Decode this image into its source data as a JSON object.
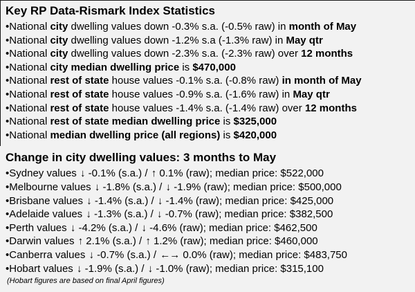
{
  "page": {
    "background": "#f2f2f2",
    "border_color": "#1a1a1a",
    "text_color": "#000000"
  },
  "section1": {
    "title": "Key RP Data-Rismark Index Statistics",
    "lines": [
      [
        {
          "t": "•National "
        },
        {
          "t": "city",
          "b": 1
        },
        {
          "t": " dwelling values down -0.3% s.a. (-0.5% raw) in "
        },
        {
          "t": "month of May",
          "b": 1
        }
      ],
      [
        {
          "t": "•National "
        },
        {
          "t": "city",
          "b": 1
        },
        {
          "t": " dwelling values down -1.2% s.a (-1.3% raw) in "
        },
        {
          "t": "May qtr",
          "b": 1
        }
      ],
      [
        {
          "t": "•National "
        },
        {
          "t": "city",
          "b": 1
        },
        {
          "t": " dwelling values down -2.3% s.a. (-2.3% raw) over "
        },
        {
          "t": "12 months",
          "b": 1
        }
      ],
      [
        {
          "t": "•National "
        },
        {
          "t": "city median dwelling price",
          "b": 1
        },
        {
          "t": " is "
        },
        {
          "t": "$470,000",
          "b": 1
        }
      ],
      [
        {
          "t": "•National "
        },
        {
          "t": "rest of state",
          "b": 1
        },
        {
          "t": " house values -0.1% s.a. (-0.8% raw) "
        },
        {
          "t": "in month of May",
          "b": 1
        }
      ],
      [
        {
          "t": "•National "
        },
        {
          "t": "rest of state",
          "b": 1
        },
        {
          "t": " house values -0.9% s.a. (-1.6% raw) in "
        },
        {
          "t": "May qtr",
          "b": 1
        }
      ],
      [
        {
          "t": "•National "
        },
        {
          "t": "rest of state",
          "b": 1
        },
        {
          "t": " house values -1.4% s.a. (-1.4% raw) over "
        },
        {
          "t": "12 months",
          "b": 1
        }
      ],
      [
        {
          "t": "•National "
        },
        {
          "t": "rest of state median dwelling price",
          "b": 1
        },
        {
          "t": " is "
        },
        {
          "t": "$325,000",
          "b": 1
        }
      ],
      [
        {
          "t": "•National "
        },
        {
          "t": "median dwelling price (all regions)",
          "b": 1
        },
        {
          "t": " is "
        },
        {
          "t": "$420,000",
          "b": 1
        }
      ]
    ]
  },
  "section2": {
    "title": "Change in city dwelling values: 3 months to May",
    "lines": [
      [
        {
          "t": "•Sydney values "
        },
        {
          "t": "↓",
          "a": 1,
          "n": "down-arrow-icon"
        },
        {
          "t": " -0.1% (s.a.) / "
        },
        {
          "t": "↑",
          "a": 1,
          "n": "up-arrow-icon"
        },
        {
          "t": " 0.1% (raw); median price: $522,000"
        }
      ],
      [
        {
          "t": "•Melbourne values "
        },
        {
          "t": "↓",
          "a": 1,
          "n": "down-arrow-icon"
        },
        {
          "t": " -1.8% (s.a.) / "
        },
        {
          "t": "↓",
          "a": 1,
          "n": "down-arrow-icon"
        },
        {
          "t": " -1.9% (raw); median price: $500,000"
        }
      ],
      [
        {
          "t": "•Brisbane values "
        },
        {
          "t": "↓",
          "a": 1,
          "n": "down-arrow-icon"
        },
        {
          "t": " -1.4% (s.a.) / "
        },
        {
          "t": "↓",
          "a": 1,
          "n": "down-arrow-icon"
        },
        {
          "t": " -1.4% (raw); median price: $425,000"
        }
      ],
      [
        {
          "t": "•Adelaide values "
        },
        {
          "t": "↓",
          "a": 1,
          "n": "down-arrow-icon"
        },
        {
          "t": " -1.3% (s.a.) / "
        },
        {
          "t": "↓",
          "a": 1,
          "n": "down-arrow-icon"
        },
        {
          "t": " -0.7% (raw); median price: $382,500"
        }
      ],
      [
        {
          "t": "•Perth values "
        },
        {
          "t": "↓",
          "a": 1,
          "n": "down-arrow-icon"
        },
        {
          "t": " -4.2% (s.a.) / "
        },
        {
          "t": "↓",
          "a": 1,
          "n": "down-arrow-icon"
        },
        {
          "t": " -4.6% (raw); median price: $462,500"
        }
      ],
      [
        {
          "t": "•Darwin values "
        },
        {
          "t": "↑",
          "a": 1,
          "n": "up-arrow-icon"
        },
        {
          "t": " 2.1% (s.a.) / "
        },
        {
          "t": "↑",
          "a": 1,
          "n": "up-arrow-icon"
        },
        {
          "t": " 1.2% (raw); median price: $460,000"
        }
      ],
      [
        {
          "t": "•Canberra values "
        },
        {
          "t": "↓",
          "a": 1,
          "n": "down-arrow-icon"
        },
        {
          "t": " -0.7% (s.a.) / "
        },
        {
          "t": "←→",
          "a": 1,
          "n": "left-right-arrow-icon"
        },
        {
          "t": " 0.0% (raw); median price: $483,750"
        }
      ],
      [
        {
          "t": "•Hobart values "
        },
        {
          "t": "↓",
          "a": 1,
          "n": "down-arrow-icon"
        },
        {
          "t": " -1.9% (s.a.) / "
        },
        {
          "t": "↓",
          "a": 1,
          "n": "down-arrow-icon"
        },
        {
          "t": " -1.0% (raw); median price: $315,100"
        }
      ]
    ],
    "footnote": "(Hobart figures are based on final April figures)"
  }
}
